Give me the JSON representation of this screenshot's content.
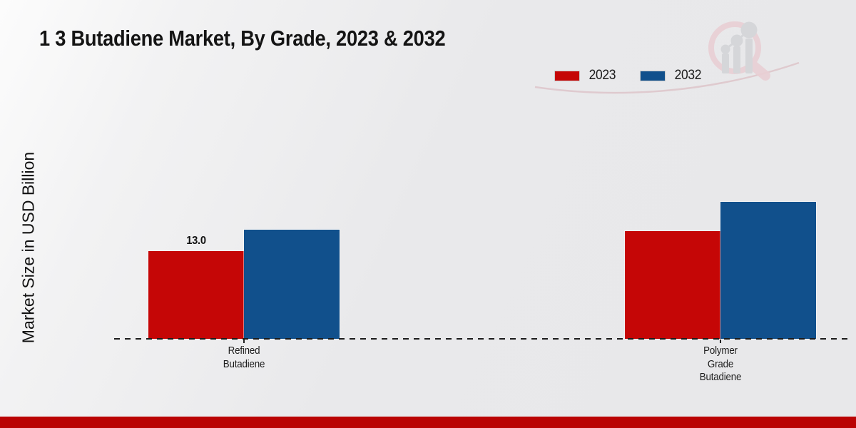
{
  "header": {
    "title": "1 3 Butadiene Market, By Grade, 2023 & 2032"
  },
  "icons": {
    "logo": "magnifier-bar-chart-logo"
  },
  "brand": {
    "footer_color": "#ba0303",
    "logo_pink": "#e9cfd4",
    "logo_gray": "#d3d4d8"
  },
  "chart_data": {
    "type": "bar",
    "title": "1 3 Butadiene Market, By Grade, 2023 & 2032",
    "xlabel": "",
    "ylabel": "Market Size in USD Billion",
    "categories": [
      "Refined\nButadiene",
      "Polymer\nGrade\nButadiene"
    ],
    "series": [
      {
        "name": "2023",
        "color": "#c50606",
        "values": [
          13.0,
          16.0
        ],
        "value_labels": [
          "13.0",
          ""
        ]
      },
      {
        "name": "2032",
        "color": "#11508c",
        "values": [
          16.2,
          20.3
        ],
        "value_labels": [
          "",
          ""
        ]
      }
    ],
    "ylim": [
      0,
      24
    ],
    "grid": false,
    "legend_position": "top-right",
    "baseline_style": "dashed",
    "value_unit": "USD Billion"
  }
}
